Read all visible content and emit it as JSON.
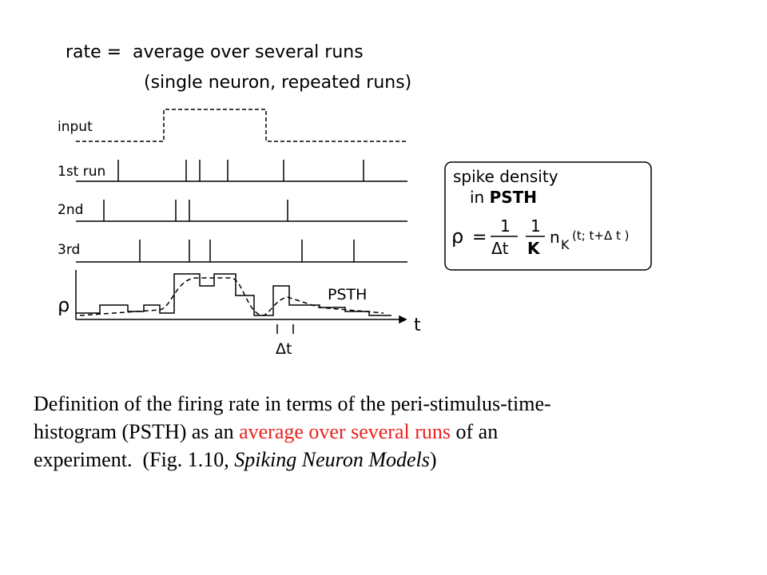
{
  "header": {
    "lhs": "rate =",
    "rhs": "average over several runs",
    "note": "(single neuron, repeated runs)"
  },
  "rows": {
    "input": "input",
    "run1": "1st run",
    "run2": "2nd",
    "run3": "3rd",
    "rho": "ρ",
    "psth": "PSTH",
    "t": "t",
    "dt": "Δt"
  },
  "box": {
    "line1": "spike density",
    "line2a": "in ",
    "line2b": "PSTH",
    "rho": "ρ",
    "eq": "=",
    "one1": "1",
    "dt": "Δt",
    "one2": "1",
    "k": "K",
    "n": "n",
    "sub": "K",
    "args": "(t; t+Δ t )"
  },
  "caption": {
    "l1": "Definition of the firing rate in terms of the peri-stimulus-time-",
    "l2a": "histogram (PSTH) as an ",
    "l2red": "average over several runs",
    "l2b": " of an",
    "l3a": "experiment.  (Fig. 1.10, ",
    "l3i": "Spiking Neuron Models",
    "l3b": ")"
  }
}
